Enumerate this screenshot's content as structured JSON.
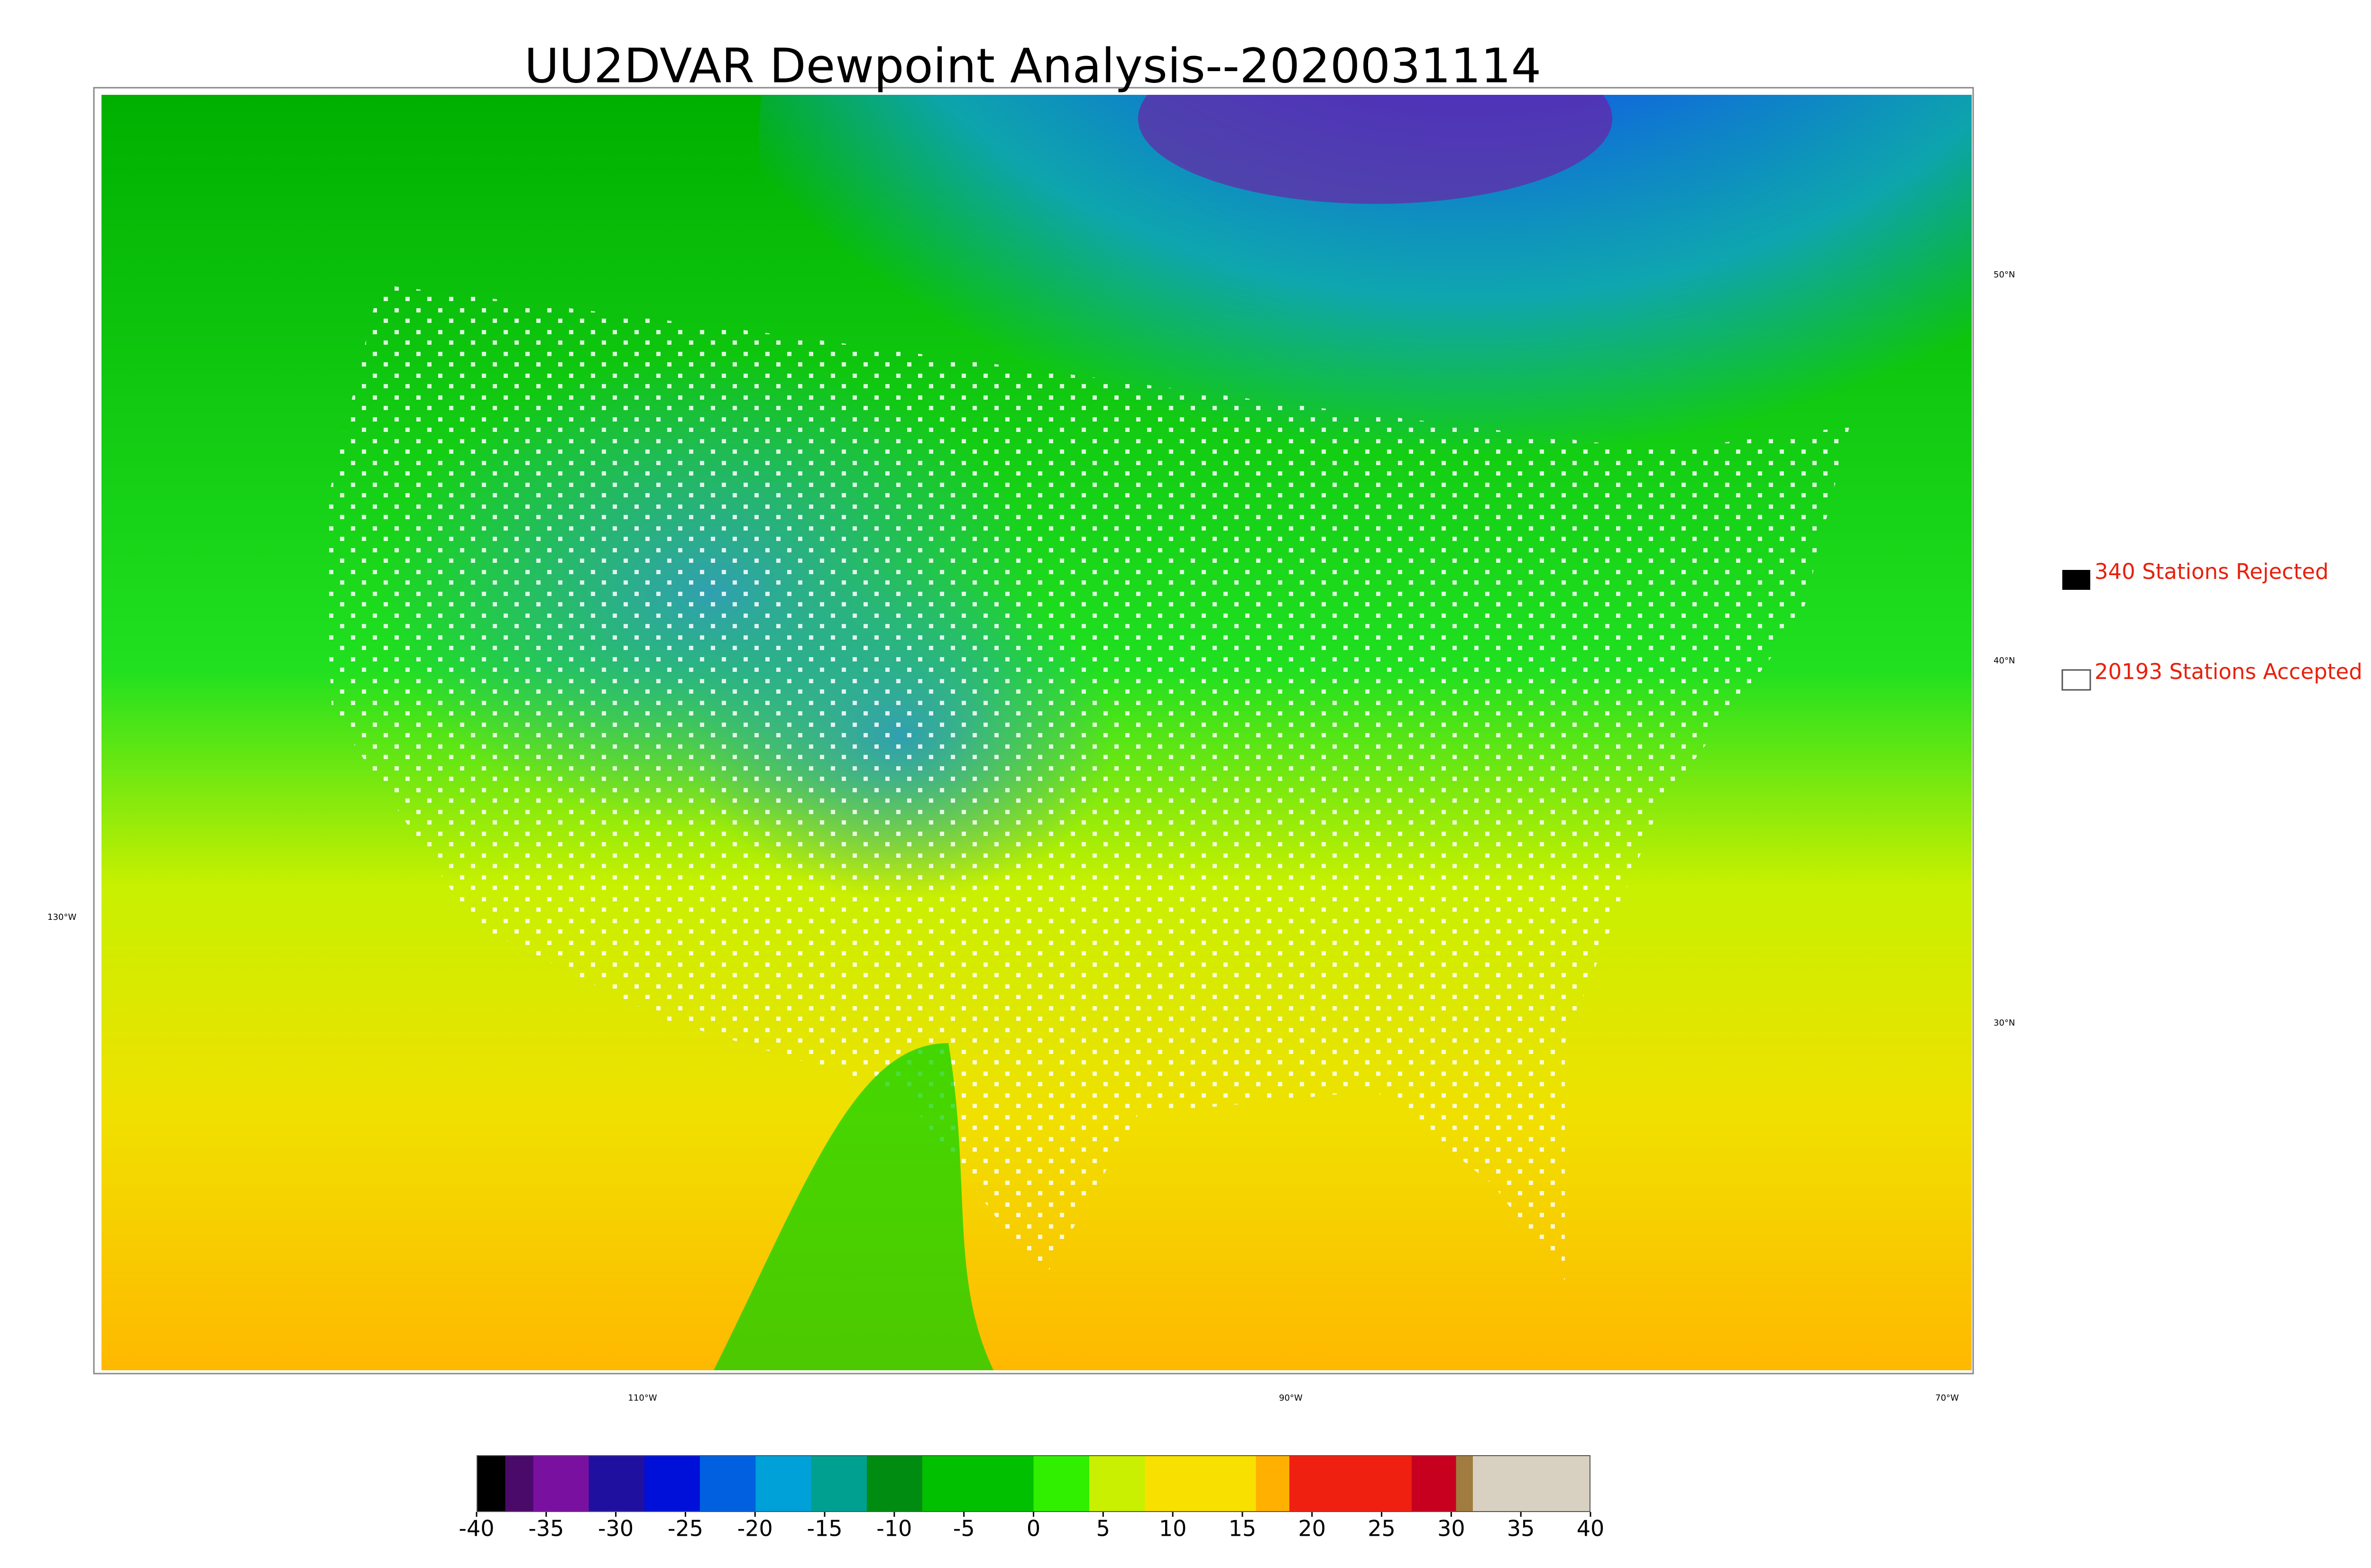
{
  "title": "UU2DVAR Dewpoint Analysis--2020031114",
  "legend": [
    "340 Stations Rejected",
    "20193 Stations Accepted"
  ],
  "map_labels": {
    "lat": [
      "50°N",
      "40°N",
      "30°N"
    ],
    "lon": [
      "130°W",
      "110°W",
      "90°W",
      "70°W"
    ]
  },
  "colorbar": {
    "lim": [
      -40,
      40
    ],
    "ticks": [
      -40,
      -35,
      -30,
      -25,
      -20,
      -15,
      -10,
      -5,
      0,
      5,
      10,
      15,
      20,
      25,
      30,
      35,
      40
    ]
  }
}
